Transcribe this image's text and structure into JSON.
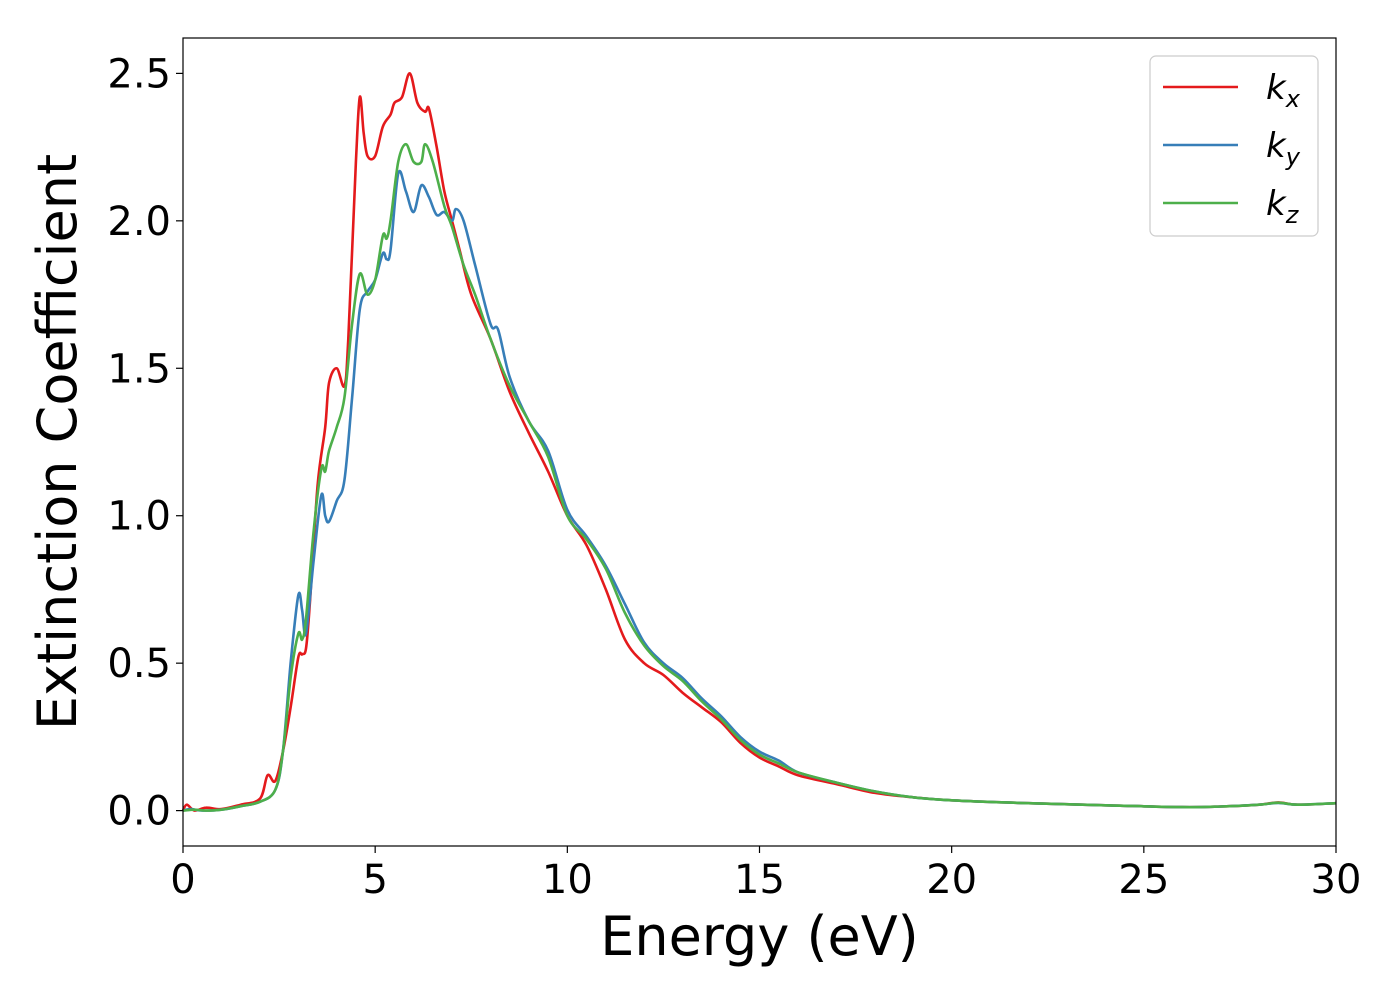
{
  "chart_data": {
    "type": "line",
    "xlabel": "Energy (eV)",
    "ylabel": "Extinction Coefficient",
    "xlim": [
      0,
      30
    ],
    "ylim": [
      -0.12,
      2.62
    ],
    "xticks": [
      0,
      5,
      10,
      15,
      20,
      25,
      30
    ],
    "xtick_labels": [
      "0",
      "5",
      "10",
      "15",
      "20",
      "25",
      "30"
    ],
    "yticks": [
      0.0,
      0.5,
      1.0,
      1.5,
      2.0,
      2.5
    ],
    "ytick_labels": [
      "0.0",
      "0.5",
      "1.0",
      "1.5",
      "2.0",
      "2.5"
    ],
    "grid": false,
    "legend_position": "top-right",
    "series": [
      {
        "name": "k",
        "subscript": "x",
        "color": "#e41a1c",
        "points": [
          [
            0,
            0.0
          ],
          [
            0.1,
            0.02
          ],
          [
            0.3,
            0.0
          ],
          [
            0.6,
            0.01
          ],
          [
            1.0,
            0.005
          ],
          [
            1.5,
            0.02
          ],
          [
            2.0,
            0.04
          ],
          [
            2.2,
            0.12
          ],
          [
            2.4,
            0.1
          ],
          [
            2.6,
            0.2
          ],
          [
            2.8,
            0.35
          ],
          [
            3.0,
            0.52
          ],
          [
            3.1,
            0.53
          ],
          [
            3.2,
            0.55
          ],
          [
            3.3,
            0.7
          ],
          [
            3.5,
            1.1
          ],
          [
            3.7,
            1.3
          ],
          [
            3.8,
            1.45
          ],
          [
            4.0,
            1.5
          ],
          [
            4.2,
            1.44
          ],
          [
            4.3,
            1.6
          ],
          [
            4.5,
            2.2
          ],
          [
            4.6,
            2.42
          ],
          [
            4.7,
            2.3
          ],
          [
            4.8,
            2.22
          ],
          [
            5.0,
            2.22
          ],
          [
            5.2,
            2.32
          ],
          [
            5.4,
            2.36
          ],
          [
            5.5,
            2.4
          ],
          [
            5.7,
            2.42
          ],
          [
            5.9,
            2.5
          ],
          [
            6.1,
            2.4
          ],
          [
            6.3,
            2.37
          ],
          [
            6.4,
            2.38
          ],
          [
            6.6,
            2.25
          ],
          [
            6.8,
            2.1
          ],
          [
            7.0,
            2.0
          ],
          [
            7.2,
            1.9
          ],
          [
            7.5,
            1.75
          ],
          [
            8.0,
            1.6
          ],
          [
            8.5,
            1.42
          ],
          [
            9.0,
            1.28
          ],
          [
            9.5,
            1.15
          ],
          [
            10.0,
            1.0
          ],
          [
            10.5,
            0.9
          ],
          [
            11.0,
            0.75
          ],
          [
            11.5,
            0.58
          ],
          [
            12.0,
            0.5
          ],
          [
            12.5,
            0.46
          ],
          [
            13.0,
            0.4
          ],
          [
            13.5,
            0.35
          ],
          [
            14.0,
            0.3
          ],
          [
            14.5,
            0.23
          ],
          [
            15.0,
            0.18
          ],
          [
            15.5,
            0.15
          ],
          [
            16.0,
            0.12
          ],
          [
            17.0,
            0.09
          ],
          [
            18.0,
            0.06
          ],
          [
            19.0,
            0.045
          ],
          [
            20.0,
            0.035
          ],
          [
            22.0,
            0.025
          ],
          [
            24.0,
            0.018
          ],
          [
            26.0,
            0.012
          ],
          [
            27.0,
            0.014
          ],
          [
            28.0,
            0.02
          ],
          [
            28.5,
            0.028
          ],
          [
            29.0,
            0.02
          ],
          [
            30.0,
            0.025
          ]
        ]
      },
      {
        "name": "k",
        "subscript": "y",
        "color": "#377eb8",
        "points": [
          [
            0,
            0.0
          ],
          [
            0.2,
            0.005
          ],
          [
            0.5,
            0.0
          ],
          [
            1.0,
            0.003
          ],
          [
            1.5,
            0.015
          ],
          [
            2.0,
            0.03
          ],
          [
            2.4,
            0.07
          ],
          [
            2.6,
            0.2
          ],
          [
            2.8,
            0.5
          ],
          [
            3.0,
            0.73
          ],
          [
            3.1,
            0.68
          ],
          [
            3.2,
            0.6
          ],
          [
            3.4,
            0.85
          ],
          [
            3.6,
            1.07
          ],
          [
            3.7,
            1.0
          ],
          [
            3.8,
            0.98
          ],
          [
            4.0,
            1.05
          ],
          [
            4.2,
            1.12
          ],
          [
            4.4,
            1.4
          ],
          [
            4.6,
            1.7
          ],
          [
            4.8,
            1.76
          ],
          [
            5.0,
            1.8
          ],
          [
            5.2,
            1.89
          ],
          [
            5.3,
            1.87
          ],
          [
            5.4,
            1.9
          ],
          [
            5.6,
            2.16
          ],
          [
            5.8,
            2.1
          ],
          [
            6.0,
            2.03
          ],
          [
            6.2,
            2.12
          ],
          [
            6.4,
            2.08
          ],
          [
            6.6,
            2.02
          ],
          [
            6.8,
            2.03
          ],
          [
            7.0,
            2.0
          ],
          [
            7.1,
            2.04
          ],
          [
            7.3,
            2.0
          ],
          [
            7.6,
            1.85
          ],
          [
            8.0,
            1.65
          ],
          [
            8.2,
            1.63
          ],
          [
            8.5,
            1.47
          ],
          [
            9.0,
            1.32
          ],
          [
            9.5,
            1.22
          ],
          [
            10.0,
            1.02
          ],
          [
            10.5,
            0.93
          ],
          [
            11.0,
            0.83
          ],
          [
            11.5,
            0.7
          ],
          [
            12.0,
            0.57
          ],
          [
            12.5,
            0.5
          ],
          [
            13.0,
            0.45
          ],
          [
            13.5,
            0.38
          ],
          [
            14.0,
            0.32
          ],
          [
            14.5,
            0.25
          ],
          [
            15.0,
            0.2
          ],
          [
            15.5,
            0.17
          ],
          [
            16.0,
            0.13
          ],
          [
            17.0,
            0.095
          ],
          [
            18.0,
            0.065
          ],
          [
            19.0,
            0.045
          ],
          [
            20.0,
            0.035
          ],
          [
            22.0,
            0.025
          ],
          [
            24.0,
            0.018
          ],
          [
            26.0,
            0.012
          ],
          [
            27.0,
            0.014
          ],
          [
            28.0,
            0.02
          ],
          [
            28.5,
            0.026
          ],
          [
            29.0,
            0.02
          ],
          [
            30.0,
            0.025
          ]
        ]
      },
      {
        "name": "k",
        "subscript": "z",
        "color": "#4daf4a",
        "points": [
          [
            0,
            0.0
          ],
          [
            0.3,
            0.003
          ],
          [
            0.6,
            0.0
          ],
          [
            1.0,
            0.003
          ],
          [
            1.5,
            0.015
          ],
          [
            2.0,
            0.03
          ],
          [
            2.4,
            0.07
          ],
          [
            2.6,
            0.2
          ],
          [
            2.8,
            0.45
          ],
          [
            3.0,
            0.6
          ],
          [
            3.1,
            0.58
          ],
          [
            3.2,
            0.65
          ],
          [
            3.4,
            0.95
          ],
          [
            3.6,
            1.16
          ],
          [
            3.7,
            1.15
          ],
          [
            3.8,
            1.22
          ],
          [
            4.0,
            1.3
          ],
          [
            4.2,
            1.4
          ],
          [
            4.4,
            1.65
          ],
          [
            4.6,
            1.82
          ],
          [
            4.8,
            1.75
          ],
          [
            5.0,
            1.8
          ],
          [
            5.2,
            1.95
          ],
          [
            5.3,
            1.94
          ],
          [
            5.4,
            2.0
          ],
          [
            5.6,
            2.2
          ],
          [
            5.8,
            2.26
          ],
          [
            6.0,
            2.2
          ],
          [
            6.2,
            2.2
          ],
          [
            6.3,
            2.26
          ],
          [
            6.5,
            2.2
          ],
          [
            6.8,
            2.05
          ],
          [
            7.0,
            1.98
          ],
          [
            7.3,
            1.85
          ],
          [
            7.6,
            1.75
          ],
          [
            8.0,
            1.6
          ],
          [
            8.5,
            1.44
          ],
          [
            9.0,
            1.32
          ],
          [
            9.5,
            1.2
          ],
          [
            10.0,
            1.0
          ],
          [
            10.5,
            0.92
          ],
          [
            11.0,
            0.82
          ],
          [
            11.5,
            0.67
          ],
          [
            12.0,
            0.56
          ],
          [
            12.5,
            0.49
          ],
          [
            13.0,
            0.44
          ],
          [
            13.5,
            0.37
          ],
          [
            14.0,
            0.31
          ],
          [
            14.5,
            0.24
          ],
          [
            15.0,
            0.19
          ],
          [
            15.5,
            0.16
          ],
          [
            16.0,
            0.13
          ],
          [
            17.0,
            0.095
          ],
          [
            18.0,
            0.065
          ],
          [
            19.0,
            0.045
          ],
          [
            20.0,
            0.035
          ],
          [
            22.0,
            0.025
          ],
          [
            24.0,
            0.018
          ],
          [
            26.0,
            0.012
          ],
          [
            27.0,
            0.014
          ],
          [
            28.0,
            0.02
          ],
          [
            28.5,
            0.027
          ],
          [
            29.0,
            0.02
          ],
          [
            30.0,
            0.025
          ]
        ]
      }
    ]
  }
}
